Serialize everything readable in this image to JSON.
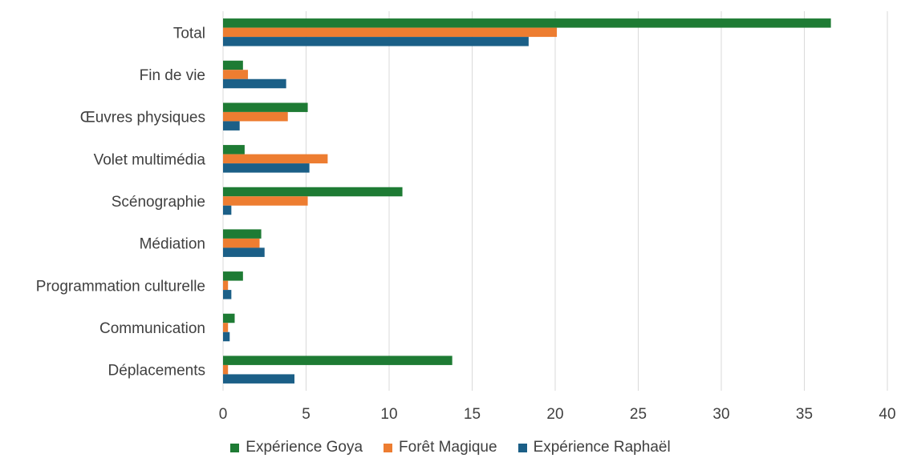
{
  "chart_data": {
    "type": "bar",
    "orientation": "horizontal",
    "title": "",
    "xlabel": "",
    "ylabel": "",
    "xlim": [
      0,
      40
    ],
    "x_ticks": [
      0,
      5,
      10,
      15,
      20,
      25,
      30,
      35,
      40
    ],
    "grid": "vertical",
    "legend_position": "bottom",
    "categories": [
      "Total",
      "Fin de vie",
      "Œuvres physiques",
      "Volet multimédia",
      "Scénographie",
      "Médiation",
      "Programmation culturelle",
      "Communication",
      "Déplacements"
    ],
    "series": [
      {
        "name": "Expérience Goya",
        "color": "#1e7b34",
        "values": [
          36.6,
          1.2,
          5.1,
          1.3,
          10.8,
          2.3,
          1.2,
          0.7,
          13.8
        ]
      },
      {
        "name": "Forêt Magique",
        "color": "#ed7d31",
        "values": [
          20.1,
          1.5,
          3.9,
          6.3,
          5.1,
          2.2,
          0.3,
          0.3,
          0.3
        ]
      },
      {
        "name": "Expérience Raphaël",
        "color": "#1b5f87",
        "values": [
          18.4,
          3.8,
          1.0,
          5.2,
          0.5,
          2.5,
          0.5,
          0.4,
          4.3
        ]
      }
    ]
  }
}
